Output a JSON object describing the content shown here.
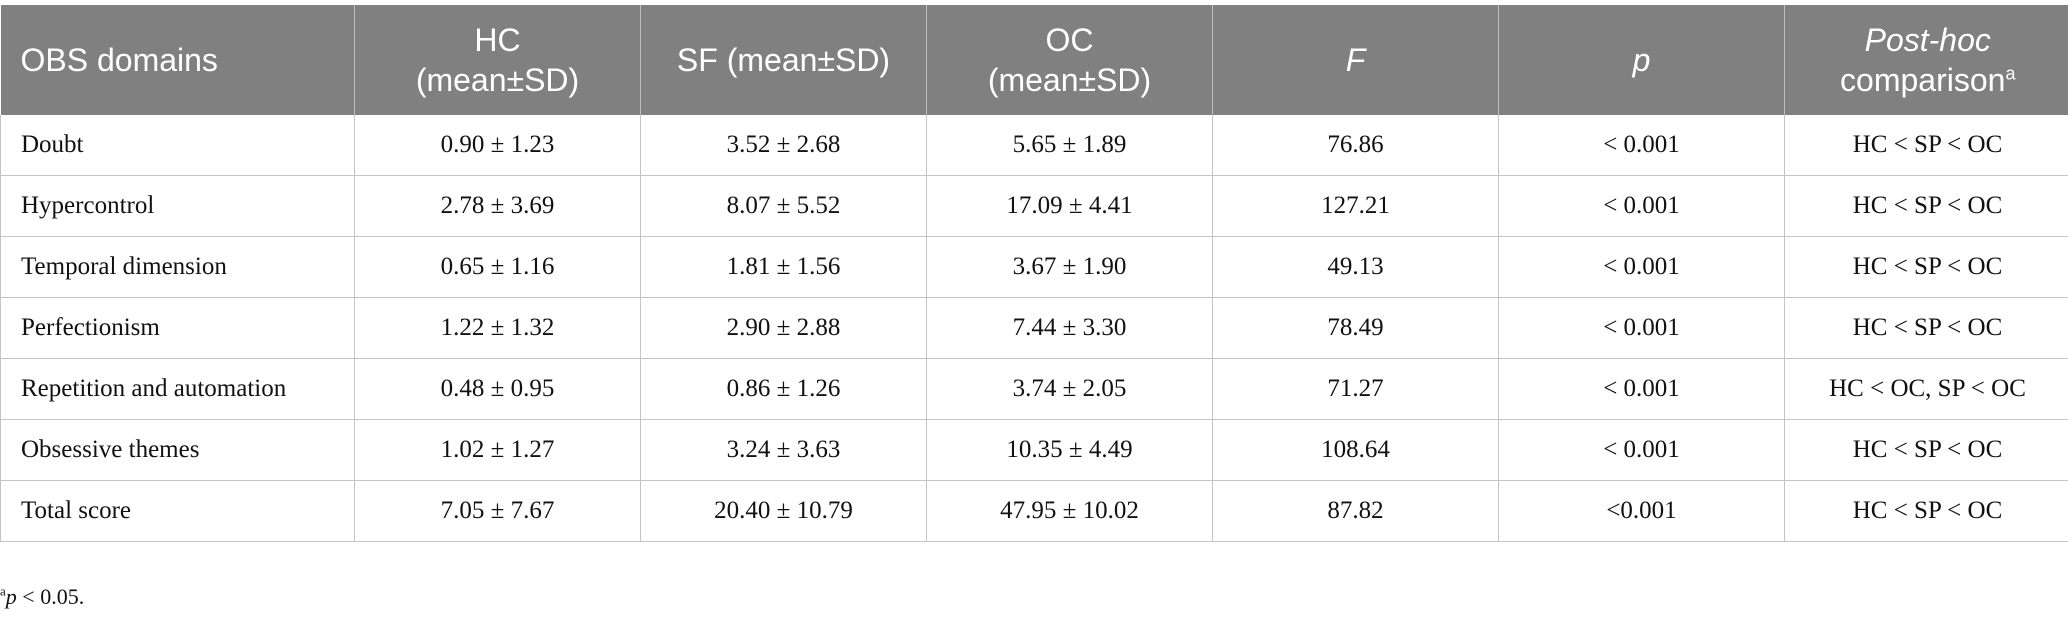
{
  "table": {
    "headers": {
      "domain": "OBS domains",
      "hc": {
        "line1": "HC",
        "line2": "(mean±SD)"
      },
      "sf": "SF (mean±SD)",
      "oc": {
        "line1": "OC",
        "line2": "(mean±SD)"
      },
      "f": "F",
      "p": "p",
      "posthoc": {
        "line1": "Post-hoc",
        "line2": "comparison",
        "mark": "a"
      }
    },
    "rows": [
      {
        "domain": "Doubt",
        "hc": "0.90 ± 1.23",
        "sf": "3.52 ± 2.68",
        "oc": "5.65 ± 1.89",
        "f": "76.86",
        "p": "< 0.001",
        "posthoc": "HC < SP < OC"
      },
      {
        "domain": "Hypercontrol",
        "hc": "2.78 ± 3.69",
        "sf": "8.07 ± 5.52",
        "oc": "17.09 ± 4.41",
        "f": "127.21",
        "p": "< 0.001",
        "posthoc": "HC < SP < OC"
      },
      {
        "domain": "Temporal dimension",
        "hc": "0.65 ± 1.16",
        "sf": "1.81 ± 1.56",
        "oc": "3.67 ± 1.90",
        "f": "49.13",
        "p": "< 0.001",
        "posthoc": "HC < SP < OC"
      },
      {
        "domain": "Perfectionism",
        "hc": "1.22 ± 1.32",
        "sf": "2.90 ± 2.88",
        "oc": "7.44 ± 3.30",
        "f": "78.49",
        "p": "< 0.001",
        "posthoc": "HC < SP < OC"
      },
      {
        "domain": "Repetition and automation",
        "hc": "0.48 ± 0.95",
        "sf": "0.86 ± 1.26",
        "oc": "3.74 ± 2.05",
        "f": "71.27",
        "p": "< 0.001",
        "posthoc": "HC < OC, SP < OC"
      },
      {
        "domain": "Obsessive themes",
        "hc": "1.02 ± 1.27",
        "sf": "3.24 ± 3.63",
        "oc": "10.35 ± 4.49",
        "f": "108.64",
        "p": "< 0.001",
        "posthoc": "HC < SP < OC"
      },
      {
        "domain": "Total score",
        "hc": "7.05 ± 7.67",
        "sf": "20.40 ± 10.79",
        "oc": "47.95 ± 10.02",
        "f": "87.82",
        "p": "<0.001",
        "posthoc": "HC < SP < OC"
      }
    ]
  },
  "footnote": {
    "mark": "a",
    "symbol": "p",
    "text": " < 0.05."
  },
  "colors": {
    "header_bg": "#808080",
    "header_text": "#ffffff",
    "border": "#c4c4c4"
  }
}
